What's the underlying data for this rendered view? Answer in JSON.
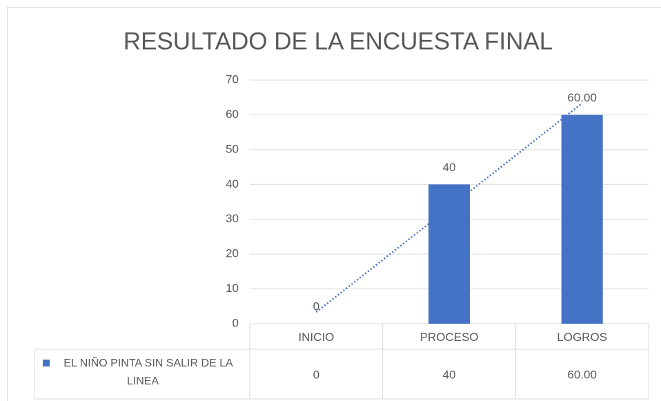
{
  "chart_data": {
    "type": "bar",
    "title": "RESULTADO DE LA ENCUESTA FINAL",
    "categories": [
      "INICIO",
      "PROCESO",
      "LOGROS"
    ],
    "series": [
      {
        "name": "EL NIÑO PINTA SIN SALIR DE LA LINEA",
        "color": "#4472c4",
        "values": [
          0,
          40,
          60
        ],
        "value_labels": [
          "0",
          "40",
          "60.00"
        ]
      }
    ],
    "ylim": [
      0,
      70
    ],
    "yticks": [
      0,
      10,
      20,
      30,
      40,
      50,
      60,
      70
    ],
    "grid": true,
    "trendline": "linear",
    "data_table": true
  }
}
